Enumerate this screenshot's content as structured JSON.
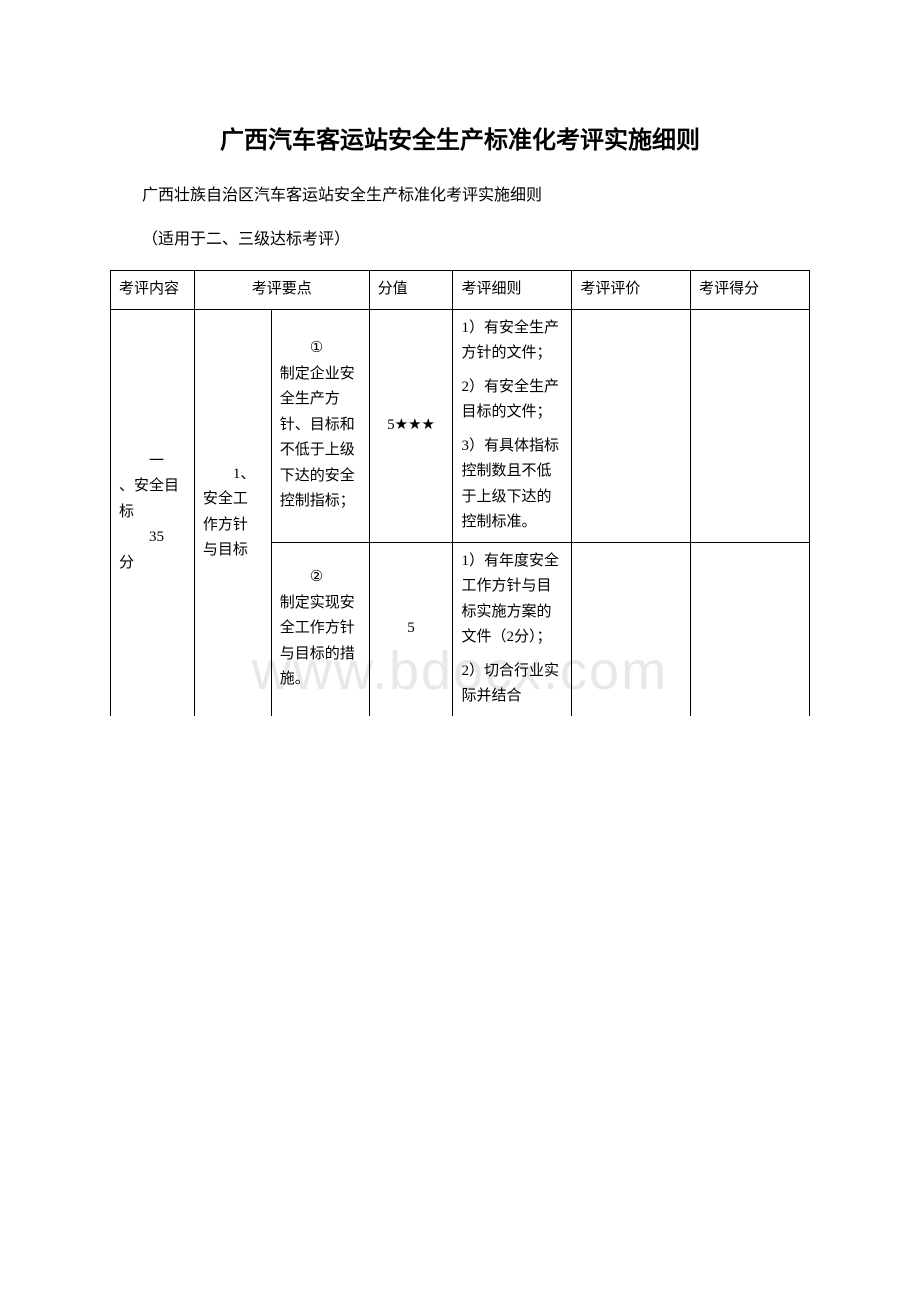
{
  "watermark": "www.bdocx.com",
  "title": "广西汽车客运站安全生产标准化考评实施细则",
  "subtitle": "广西壮族自治区汽车客运站安全生产标准化考评实施细则",
  "applicable": "（适用于二、三级达标考评）",
  "table": {
    "headers": {
      "col1": "考评内容",
      "col2_3": "考评要点",
      "col4": "分值",
      "col5": "考评细则",
      "col6": "考评评价",
      "col7": "考评得分"
    },
    "rows": [
      {
        "content": "一、安全目标\n35分",
        "point_main": "1、安全工作方针与目标",
        "point_sub": "①制定企业安全生产方针、目标和不低于上级下达的安全控制指标；",
        "score": "5★★★",
        "detail_1": "1）有安全生产方针的文件；",
        "detail_2": "2）有安全生产目标的文件；",
        "detail_3": "3）有具体指标控制数且不低于上级下达的控制标准。",
        "eval": "",
        "score_got": ""
      },
      {
        "point_sub": "②制定实现安全工作方针与目标的措施。",
        "score": "5",
        "detail_1": "1）有年度安全工作方针与目标实施方案的文件（2分）；",
        "detail_2": "2）切合行业实际并结合",
        "eval": "",
        "score_got": ""
      }
    ]
  },
  "colors": {
    "text": "#000000",
    "background": "#ffffff",
    "border": "#000000",
    "watermark": "#e8e8e8"
  }
}
